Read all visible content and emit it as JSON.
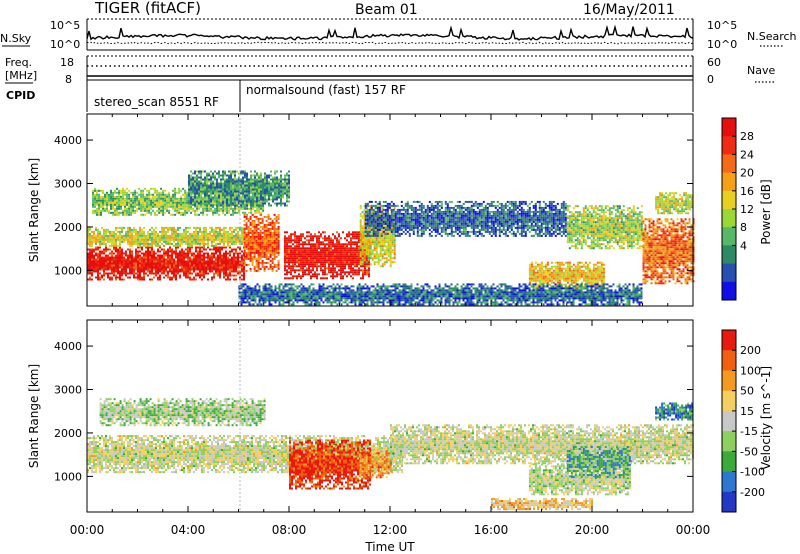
{
  "header": {
    "title": "TIGER (fitACF)",
    "beam": "Beam 01",
    "date": "16/May/2011"
  },
  "panels": {
    "nsky": {
      "left_label": "N.Sky",
      "left_ticks": [
        "10^5",
        "10^0"
      ],
      "right_ticks": [
        "10^5",
        "10^0"
      ],
      "right_label": "N.Search"
    },
    "freq": {
      "left_label_line1": "Freq.",
      "left_label_line2": "[MHz]",
      "left_ticks": [
        "18",
        "8"
      ],
      "right_ticks": [
        "60",
        "0"
      ],
      "right_label": "Nave"
    },
    "cpid": {
      "label": "CPID",
      "segments": [
        "stereo_scan 8551 RF",
        "normalsound (fast) 157 RF"
      ]
    }
  },
  "chart_data": [
    {
      "type": "heatmap",
      "panel": "power",
      "ylabel": "Slant Range [km]",
      "xlabel": "Time UT",
      "x_ticks": [
        "00:00",
        "04:00",
        "08:00",
        "12:00",
        "16:00",
        "20:00",
        "00:00"
      ],
      "xlim_hours": [
        0,
        24
      ],
      "y_ticks": [
        1000,
        2000,
        3000,
        4000
      ],
      "ylim_km": [
        180,
        4600
      ],
      "colorbar": {
        "label": "Power [dB]",
        "ticks": [
          "28",
          "24",
          "20",
          "16",
          "12",
          "8",
          "4"
        ],
        "colors": [
          "#1010e6",
          "#2850b0",
          "#2e8a64",
          "#58b86a",
          "#9ad838",
          "#e8d020",
          "#f6a018",
          "#f46a16",
          "#ef2b12",
          "#e40f0f"
        ]
      },
      "bands": [
        {
          "start_h": 0.0,
          "end_h": 6.2,
          "low_km": 800,
          "high_km": 1550,
          "level": 0.93
        },
        {
          "start_h": 0.0,
          "end_h": 6.2,
          "low_km": 1550,
          "high_km": 2000,
          "level": 0.5
        },
        {
          "start_h": 0.2,
          "end_h": 7.0,
          "low_km": 2300,
          "high_km": 2900,
          "level": 0.4
        },
        {
          "start_h": 4.0,
          "end_h": 8.0,
          "low_km": 2500,
          "high_km": 3300,
          "level": 0.28
        },
        {
          "start_h": 6.2,
          "end_h": 7.6,
          "low_km": 1000,
          "high_km": 2300,
          "level": 0.78
        },
        {
          "start_h": 7.8,
          "end_h": 11.2,
          "low_km": 800,
          "high_km": 1900,
          "level": 0.95
        },
        {
          "start_h": 10.8,
          "end_h": 12.2,
          "low_km": 1100,
          "high_km": 2500,
          "level": 0.55
        },
        {
          "start_h": 11.0,
          "end_h": 19.0,
          "low_km": 1800,
          "high_km": 2600,
          "level": 0.18
        },
        {
          "start_h": 17.5,
          "end_h": 20.5,
          "low_km": 600,
          "high_km": 1200,
          "level": 0.6
        },
        {
          "start_h": 19.0,
          "end_h": 22.0,
          "low_km": 1500,
          "high_km": 2500,
          "level": 0.45
        },
        {
          "start_h": 22.0,
          "end_h": 24.0,
          "low_km": 700,
          "high_km": 2200,
          "level": 0.75
        },
        {
          "start_h": 22.5,
          "end_h": 24.0,
          "low_km": 2300,
          "high_km": 2800,
          "level": 0.5
        },
        {
          "start_h": 6.0,
          "end_h": 22.0,
          "low_km": 200,
          "high_km": 700,
          "level": 0.2
        }
      ]
    },
    {
      "type": "heatmap",
      "panel": "velocity",
      "ylabel": "Slant Range [km]",
      "xlabel": "Time UT",
      "x_ticks": [
        "00:00",
        "04:00",
        "08:00",
        "12:00",
        "16:00",
        "20:00",
        "00:00"
      ],
      "xlim_hours": [
        0,
        24
      ],
      "y_ticks": [
        1000,
        2000,
        3000,
        4000
      ],
      "ylim_km": [
        180,
        4600
      ],
      "colorbar": {
        "label": "Velocity [m s^-1]",
        "ticks": [
          "200",
          "100",
          "50",
          "15",
          "-15",
          "-50",
          "-100",
          "-200"
        ],
        "colors": [
          "#2438c8",
          "#2c78d0",
          "#3aaa3a",
          "#8ed060",
          "#c8c8c8",
          "#f4d060",
          "#f49a20",
          "#f06010",
          "#e81a10"
        ]
      },
      "bands": [
        {
          "start_h": 0.0,
          "end_h": 12.5,
          "low_km": 1100,
          "high_km": 1950,
          "level": 0.5
        },
        {
          "start_h": 0.5,
          "end_h": 7.0,
          "low_km": 2200,
          "high_km": 2800,
          "level": 0.42
        },
        {
          "start_h": 8.0,
          "end_h": 11.2,
          "low_km": 700,
          "high_km": 1850,
          "level": 0.92
        },
        {
          "start_h": 10.8,
          "end_h": 12.0,
          "low_km": 1000,
          "high_km": 1600,
          "level": 0.75
        },
        {
          "start_h": 12.0,
          "end_h": 24.0,
          "low_km": 1300,
          "high_km": 2200,
          "level": 0.5
        },
        {
          "start_h": 17.5,
          "end_h": 21.5,
          "low_km": 600,
          "high_km": 1300,
          "level": 0.48
        },
        {
          "start_h": 19.0,
          "end_h": 21.5,
          "low_km": 1000,
          "high_km": 1700,
          "level": 0.3
        },
        {
          "start_h": 16.0,
          "end_h": 20.0,
          "low_km": 250,
          "high_km": 500,
          "level": 0.62
        },
        {
          "start_h": 22.5,
          "end_h": 24.0,
          "low_km": 2300,
          "high_km": 2700,
          "level": 0.2
        }
      ]
    }
  ]
}
